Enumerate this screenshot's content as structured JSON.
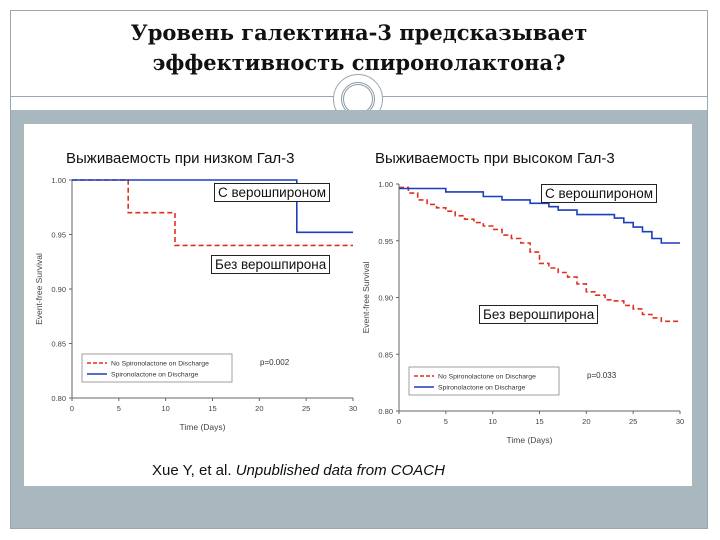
{
  "slide": {
    "title_line1": "Уровень галектина-3 предсказывает",
    "title_line2": "эффективность спиронолактона?",
    "citation_author": "Xue Y, et al.",
    "citation_source": "Unpublished data from COACH"
  },
  "left": {
    "heading": "Выживаемость при низком Гал-3",
    "ann_with": "С верошпироном",
    "ann_without": "Без верошпирона"
  },
  "right": {
    "heading": "Выживаемость при высоком Гал-3",
    "ann_with": "С верошпироном",
    "ann_without": "Без верошпирона"
  },
  "chart_data": [
    {
      "type": "line",
      "xlabel": "Time (Days)",
      "ylabel": "Event-free Survival",
      "xlim": [
        0,
        30
      ],
      "ylim": [
        0.8,
        1.0
      ],
      "xticks": [
        "0",
        "5",
        "10",
        "15",
        "20",
        "25",
        "30"
      ],
      "yticks": [
        "0.80",
        "0.85",
        "0.90",
        "0.95",
        "1.00"
      ],
      "pvalue": "p=0.002",
      "legend_position": "bottom-left",
      "series": [
        {
          "name": "No Spironolactone on Discharge",
          "color": "#e03020",
          "style": "dashed",
          "x": [
            0,
            6,
            6,
            11,
            11,
            30
          ],
          "y": [
            1.0,
            1.0,
            0.97,
            0.97,
            0.94,
            0.94
          ]
        },
        {
          "name": "Spironolactone on Discharge",
          "color": "#1a3fbf",
          "style": "solid",
          "x": [
            0,
            24,
            24,
            30
          ],
          "y": [
            1.0,
            1.0,
            0.952,
            0.952
          ]
        }
      ]
    },
    {
      "type": "line",
      "xlabel": "Time (Days)",
      "ylabel": "Event-free Survival",
      "xlim": [
        0,
        30
      ],
      "ylim": [
        0.8,
        1.0
      ],
      "xticks": [
        "0",
        "5",
        "10",
        "15",
        "20",
        "25",
        "30"
      ],
      "yticks": [
        "0.80",
        "0.85",
        "0.90",
        "0.95",
        "1.00"
      ],
      "pvalue": "p=0.033",
      "legend_position": "bottom-left",
      "series": [
        {
          "name": "No Spironolactone on Discharge",
          "color": "#e03020",
          "style": "dashed",
          "x": [
            0,
            1,
            1,
            2,
            2,
            3,
            3,
            4,
            4,
            5,
            5,
            6,
            6,
            7,
            7,
            8,
            8,
            9,
            9,
            10,
            10,
            11,
            11,
            12,
            12,
            13,
            13,
            14,
            14,
            15,
            15,
            16,
            16,
            17,
            17,
            18,
            18,
            19,
            19,
            20,
            20,
            21,
            21,
            22,
            22,
            23,
            23,
            24,
            24,
            25,
            25,
            26,
            26,
            27,
            27,
            28,
            28,
            30
          ],
          "y": [
            0.997,
            0.997,
            0.992,
            0.992,
            0.986,
            0.986,
            0.982,
            0.982,
            0.979,
            0.979,
            0.976,
            0.976,
            0.972,
            0.972,
            0.969,
            0.969,
            0.966,
            0.966,
            0.963,
            0.963,
            0.96,
            0.96,
            0.955,
            0.955,
            0.952,
            0.952,
            0.948,
            0.948,
            0.94,
            0.94,
            0.93,
            0.93,
            0.926,
            0.926,
            0.922,
            0.922,
            0.918,
            0.918,
            0.912,
            0.912,
            0.905,
            0.905,
            0.902,
            0.902,
            0.898,
            0.898,
            0.897,
            0.897,
            0.893,
            0.893,
            0.89,
            0.89,
            0.885,
            0.885,
            0.882,
            0.882,
            0.879,
            0.879
          ]
        },
        {
          "name": "Spironolactone on Discharge",
          "color": "#1a3fbf",
          "style": "solid",
          "x": [
            0,
            5,
            5,
            9,
            9,
            11,
            11,
            14,
            14,
            16,
            16,
            17,
            17,
            19,
            19,
            23,
            23,
            24,
            24,
            25,
            25,
            26,
            26,
            27,
            27,
            28,
            28,
            30
          ],
          "y": [
            0.996,
            0.996,
            0.993,
            0.993,
            0.989,
            0.989,
            0.986,
            0.986,
            0.983,
            0.983,
            0.98,
            0.98,
            0.977,
            0.977,
            0.973,
            0.973,
            0.97,
            0.97,
            0.966,
            0.966,
            0.962,
            0.962,
            0.958,
            0.958,
            0.952,
            0.952,
            0.948,
            0.948
          ]
        }
      ]
    }
  ]
}
